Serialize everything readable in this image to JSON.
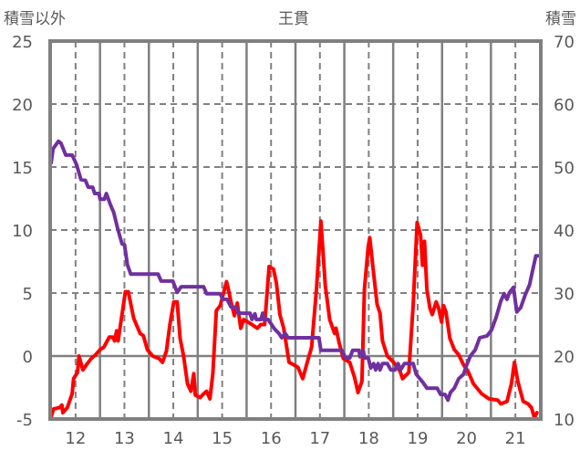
{
  "chart_data": {
    "type": "line",
    "title": "王貫",
    "left_axis_label": "積雪以外",
    "right_axis_label": "積雪",
    "xlim": [
      11.48,
      21.52
    ],
    "ylim_left": [
      -5,
      25
    ],
    "ylim_right": [
      10,
      70
    ],
    "x_ticks": [
      "12",
      "13",
      "14",
      "15",
      "16",
      "17",
      "18",
      "19",
      "20",
      "21"
    ],
    "y_ticks_left": [
      "25",
      "20",
      "15",
      "10",
      "5",
      "0",
      "-5"
    ],
    "y_ticks_right": [
      "70",
      "60",
      "50",
      "40",
      "30",
      "20",
      "10"
    ],
    "grid": true,
    "series": [
      {
        "name": "積雪以外",
        "axis": "left",
        "color": "#ff0000",
        "points": [
          [
            11.5,
            -4.8
          ],
          [
            11.55,
            -4.2
          ],
          [
            11.67,
            -4.1
          ],
          [
            11.72,
            -3.9
          ],
          [
            11.74,
            -4.5
          ],
          [
            11.83,
            -4.1
          ],
          [
            11.93,
            -3.0
          ],
          [
            11.96,
            -1.8
          ],
          [
            12.04,
            -1.3
          ],
          [
            12.07,
            0
          ],
          [
            12.15,
            -1.1
          ],
          [
            12.24,
            -0.6
          ],
          [
            12.32,
            -0.2
          ],
          [
            12.41,
            0.1
          ],
          [
            12.5,
            0.5
          ],
          [
            12.58,
            0.7
          ],
          [
            12.69,
            1.5
          ],
          [
            12.76,
            1.5
          ],
          [
            12.8,
            1.2
          ],
          [
            12.84,
            2.0
          ],
          [
            12.87,
            1.2
          ],
          [
            12.95,
            3.3
          ],
          [
            13.02,
            5.1
          ],
          [
            13.08,
            5.1
          ],
          [
            13.19,
            3.0
          ],
          [
            13.32,
            1.8
          ],
          [
            13.39,
            1.6
          ],
          [
            13.47,
            0.5
          ],
          [
            13.58,
            0
          ],
          [
            13.71,
            -0.2
          ],
          [
            13.78,
            -0.5
          ],
          [
            13.86,
            0.4
          ],
          [
            13.93,
            2.5
          ],
          [
            14.01,
            4.3
          ],
          [
            14.08,
            4.3
          ],
          [
            14.14,
            1.4
          ],
          [
            14.21,
            0
          ],
          [
            14.29,
            -2.2
          ],
          [
            14.36,
            -2.8
          ],
          [
            14.42,
            -1.4
          ],
          [
            14.45,
            -3.1
          ],
          [
            14.55,
            -3.3
          ],
          [
            14.62,
            -3.0
          ],
          [
            14.68,
            -2.8
          ],
          [
            14.75,
            -3.4
          ],
          [
            14.81,
            -1.4
          ],
          [
            14.88,
            3.6
          ],
          [
            14.96,
            4.0
          ],
          [
            15.09,
            5.9
          ],
          [
            15.12,
            5.4
          ],
          [
            15.18,
            4.3
          ],
          [
            15.25,
            3.2
          ],
          [
            15.31,
            4.2
          ],
          [
            15.38,
            2.2
          ],
          [
            15.44,
            2.9
          ],
          [
            15.61,
            2.5
          ],
          [
            15.72,
            2.2
          ],
          [
            15.79,
            2.5
          ],
          [
            15.87,
            2.5
          ],
          [
            15.96,
            7.1
          ],
          [
            16.05,
            6.9
          ],
          [
            16.11,
            5.8
          ],
          [
            16.18,
            3.3
          ],
          [
            16.26,
            2.2
          ],
          [
            16.37,
            -0.5
          ],
          [
            16.42,
            -0.6
          ],
          [
            16.55,
            -0.9
          ],
          [
            16.65,
            -1.8
          ],
          [
            16.74,
            -0.5
          ],
          [
            16.83,
            0.7
          ],
          [
            16.93,
            5.3
          ],
          [
            17.02,
            10.7
          ],
          [
            17.11,
            5.6
          ],
          [
            17.2,
            2.9
          ],
          [
            17.3,
            1.8
          ],
          [
            17.33,
            2.2
          ],
          [
            17.39,
            1.1
          ],
          [
            17.48,
            -0.2
          ],
          [
            17.61,
            -0.5
          ],
          [
            17.71,
            -1.7
          ],
          [
            17.78,
            -2.9
          ],
          [
            17.86,
            -2.0
          ],
          [
            17.91,
            5.3
          ],
          [
            17.99,
            8.7
          ],
          [
            18.02,
            9.4
          ],
          [
            18.08,
            7.2
          ],
          [
            18.17,
            4.1
          ],
          [
            18.23,
            3.4
          ],
          [
            18.28,
            1.2
          ],
          [
            18.38,
            0
          ],
          [
            18.51,
            -0.5
          ],
          [
            18.64,
            -1.2
          ],
          [
            18.69,
            -1.8
          ],
          [
            18.82,
            -1.3
          ],
          [
            18.91,
            4.1
          ],
          [
            18.99,
            10.6
          ],
          [
            19.06,
            9.6
          ],
          [
            19.1,
            7.2
          ],
          [
            19.14,
            9.1
          ],
          [
            19.19,
            5.3
          ],
          [
            19.25,
            3.8
          ],
          [
            19.3,
            3.3
          ],
          [
            19.38,
            4.3
          ],
          [
            19.43,
            3.8
          ],
          [
            19.49,
            2.7
          ],
          [
            19.53,
            4.0
          ],
          [
            19.58,
            3.5
          ],
          [
            19.66,
            1.4
          ],
          [
            19.75,
            0.5
          ],
          [
            19.84,
            0.1
          ],
          [
            19.94,
            -0.7
          ],
          [
            20.03,
            -1.2
          ],
          [
            20.14,
            -2.2
          ],
          [
            20.31,
            -3.0
          ],
          [
            20.46,
            -3.4
          ],
          [
            20.64,
            -3.5
          ],
          [
            20.7,
            -3.8
          ],
          [
            20.83,
            -3.6
          ],
          [
            20.92,
            -2.2
          ],
          [
            20.98,
            -0.5
          ],
          [
            21.05,
            -2.0
          ],
          [
            21.16,
            -3.6
          ],
          [
            21.26,
            -3.8
          ],
          [
            21.33,
            -4.1
          ],
          [
            21.39,
            -4.9
          ],
          [
            21.44,
            -4.5
          ]
        ]
      },
      {
        "name": "積雪",
        "axis": "right",
        "color": "#7030a0",
        "points": [
          [
            11.5,
            50.7
          ],
          [
            11.54,
            52.9
          ],
          [
            11.65,
            54.1
          ],
          [
            11.7,
            53.8
          ],
          [
            11.8,
            51.9
          ],
          [
            11.93,
            51.9
          ],
          [
            12.02,
            50.4
          ],
          [
            12.11,
            48.0
          ],
          [
            12.2,
            47.9
          ],
          [
            12.26,
            46.8
          ],
          [
            12.35,
            46.8
          ],
          [
            12.39,
            45.8
          ],
          [
            12.48,
            45.8
          ],
          [
            12.5,
            44.9
          ],
          [
            12.59,
            44.9
          ],
          [
            12.63,
            45.8
          ],
          [
            12.72,
            43.9
          ],
          [
            12.78,
            42.8
          ],
          [
            12.86,
            40.3
          ],
          [
            12.95,
            37.8
          ],
          [
            13.0,
            37.7
          ],
          [
            13.06,
            34.5
          ],
          [
            13.13,
            33.0
          ],
          [
            13.69,
            33.0
          ],
          [
            13.75,
            31.9
          ],
          [
            13.99,
            31.9
          ],
          [
            14.08,
            30.1
          ],
          [
            14.16,
            31.0
          ],
          [
            14.62,
            31.0
          ],
          [
            14.68,
            29.9
          ],
          [
            14.96,
            29.9
          ],
          [
            15.01,
            29.0
          ],
          [
            15.1,
            29.0
          ],
          [
            15.18,
            27.8
          ],
          [
            15.29,
            27.7
          ],
          [
            15.33,
            26.8
          ],
          [
            15.57,
            26.8
          ],
          [
            15.61,
            25.8
          ],
          [
            15.67,
            26.7
          ],
          [
            15.7,
            25.8
          ],
          [
            15.79,
            25.8
          ],
          [
            15.83,
            26.8
          ],
          [
            15.85,
            25.8
          ],
          [
            15.94,
            25.8
          ],
          [
            16.07,
            24.3
          ],
          [
            16.16,
            23.6
          ],
          [
            16.22,
            22.9
          ],
          [
            16.29,
            23.6
          ],
          [
            16.35,
            22.9
          ],
          [
            16.98,
            22.9
          ],
          [
            17.02,
            20.9
          ],
          [
            17.45,
            20.9
          ],
          [
            17.52,
            19.7
          ],
          [
            17.61,
            19.7
          ],
          [
            17.67,
            20.9
          ],
          [
            17.8,
            20.9
          ],
          [
            17.82,
            19.9
          ],
          [
            17.89,
            20.8
          ],
          [
            17.91,
            19.7
          ],
          [
            17.99,
            19.7
          ],
          [
            18.04,
            18.1
          ],
          [
            18.1,
            18.8
          ],
          [
            18.14,
            17.8
          ],
          [
            18.19,
            18.8
          ],
          [
            18.23,
            17.8
          ],
          [
            18.28,
            18.8
          ],
          [
            18.38,
            18.8
          ],
          [
            18.45,
            17.8
          ],
          [
            18.54,
            17.8
          ],
          [
            18.6,
            18.8
          ],
          [
            18.65,
            17.8
          ],
          [
            18.73,
            18.8
          ],
          [
            18.91,
            18.8
          ],
          [
            18.97,
            17.1
          ],
          [
            19.1,
            15.9
          ],
          [
            19.19,
            14.9
          ],
          [
            19.4,
            14.9
          ],
          [
            19.47,
            13.9
          ],
          [
            19.56,
            13.9
          ],
          [
            19.62,
            13.0
          ],
          [
            19.67,
            14.2
          ],
          [
            19.75,
            14.9
          ],
          [
            19.84,
            16.4
          ],
          [
            19.94,
            17.1
          ],
          [
            19.99,
            18.3
          ],
          [
            20.08,
            20.0
          ],
          [
            20.18,
            21.0
          ],
          [
            20.27,
            22.9
          ],
          [
            20.42,
            23.2
          ],
          [
            20.51,
            24.1
          ],
          [
            20.61,
            26.2
          ],
          [
            20.7,
            28.7
          ],
          [
            20.77,
            29.9
          ],
          [
            20.83,
            29.0
          ],
          [
            20.88,
            30.1
          ],
          [
            20.96,
            30.9
          ],
          [
            21.03,
            27.0
          ],
          [
            21.11,
            27.7
          ],
          [
            21.2,
            29.7
          ],
          [
            21.29,
            31.3
          ],
          [
            21.35,
            33.5
          ],
          [
            21.42,
            35.9
          ],
          [
            21.46,
            35.9
          ]
        ]
      }
    ]
  }
}
